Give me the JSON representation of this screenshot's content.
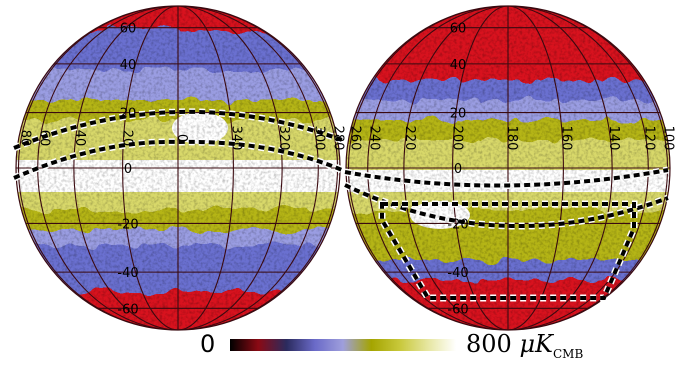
{
  "left_hemisphere": {
    "lat_labels": [
      "60",
      "40",
      "20",
      "0",
      "-20",
      "-40",
      "-60"
    ],
    "lon_labels": [
      "80",
      "60",
      "40",
      "20",
      "0",
      "340",
      "320",
      "300",
      "280"
    ]
  },
  "right_hemisphere": {
    "lat_labels": [
      "60",
      "40",
      "20",
      "0",
      "-20",
      "-40",
      "-60"
    ],
    "lon_labels": [
      "260",
      "240",
      "220",
      "200",
      "180",
      "160",
      "140",
      "120",
      "100"
    ]
  },
  "colorbar": {
    "min_label": "0",
    "max_value": "800",
    "unit_mu": "μK",
    "unit_sub": "CMB",
    "colors": [
      "#000000",
      "#8b0a14",
      "#2b2b5e",
      "#6a6ac8",
      "#9f9fdc",
      "#a4a400",
      "#c8c83a",
      "#e6e6a0",
      "#ffffff"
    ]
  },
  "colors": {
    "red": "#d8121e",
    "blue": "#6b6fd0",
    "blue_light": "#9a9de2",
    "yellow": "#b5b515",
    "yellow_light": "#d8d86a",
    "white": "#ffffff",
    "grid": "#3a0a10"
  }
}
